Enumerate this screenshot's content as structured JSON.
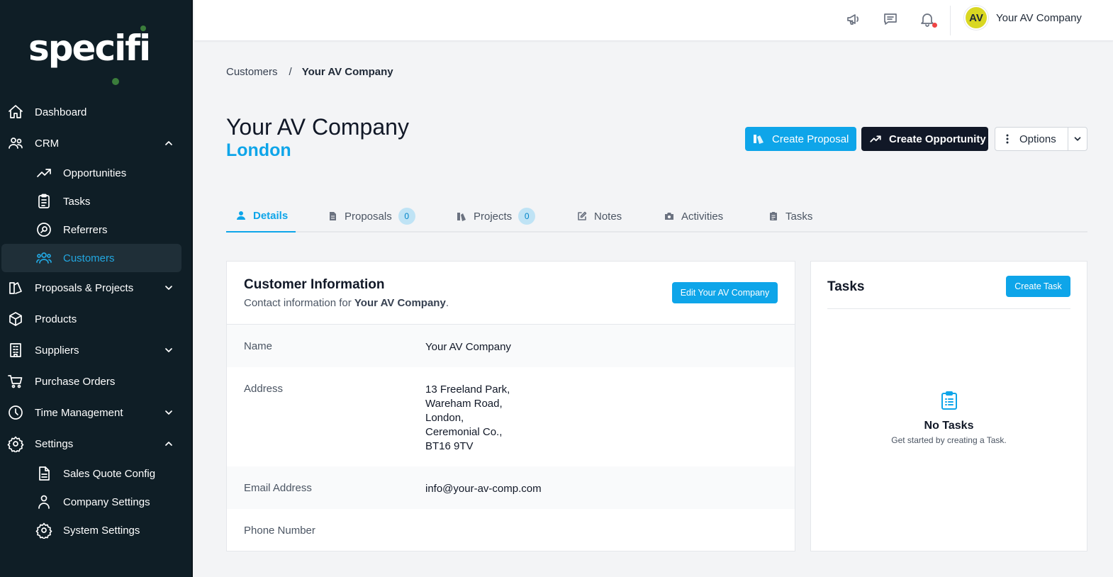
{
  "app": {
    "logo_text": "specifi"
  },
  "sidebar": {
    "items": [
      {
        "label": "Dashboard"
      },
      {
        "label": "CRM"
      },
      {
        "label": "Opportunities"
      },
      {
        "label": "Tasks"
      },
      {
        "label": "Referrers"
      },
      {
        "label": "Customers"
      },
      {
        "label": "Proposals & Projects"
      },
      {
        "label": "Products"
      },
      {
        "label": "Suppliers"
      },
      {
        "label": "Purchase Orders"
      },
      {
        "label": "Time Management"
      },
      {
        "label": "Settings"
      },
      {
        "label": "Sales Quote Config"
      },
      {
        "label": "Company Settings"
      },
      {
        "label": "System Settings"
      }
    ]
  },
  "topbar": {
    "avatar_initials": "AV",
    "user_name": "Your AV Company"
  },
  "breadcrumb": {
    "parent": "Customers",
    "separator": "/",
    "current": "Your AV Company"
  },
  "header": {
    "title": "Your AV Company",
    "subtitle": "London",
    "create_proposal": "Create Proposal",
    "create_opportunity": "Create Opportunity",
    "options": "Options"
  },
  "tabs": [
    {
      "label": "Details"
    },
    {
      "label": "Proposals",
      "count": "0"
    },
    {
      "label": "Projects",
      "count": "0"
    },
    {
      "label": "Notes"
    },
    {
      "label": "Activities"
    },
    {
      "label": "Tasks"
    }
  ],
  "customer_info": {
    "title": "Customer Information",
    "desc_prefix": "Contact information for ",
    "desc_name": "Your AV Company",
    "desc_suffix": ".",
    "edit_button": "Edit Your AV Company",
    "rows": [
      {
        "label": "Name",
        "value": "Your AV Company"
      },
      {
        "label": "Address",
        "lines": [
          "13 Freeland Park,",
          "Wareham Road,",
          "London,",
          "Ceremonial Co.,",
          "BT16 9TV"
        ]
      },
      {
        "label": "Email Address",
        "value": "info@your-av-comp.com"
      },
      {
        "label": "Phone Number",
        "value": ""
      }
    ]
  },
  "tasks_panel": {
    "title": "Tasks",
    "create_button": "Create Task",
    "empty_title": "No Tasks",
    "empty_desc": "Get started by creating a Task."
  },
  "colors": {
    "accent": "#0ea5e9",
    "sidebar_bg": "#0f1e26",
    "dark_button": "#111827",
    "avatar_bg": "#d9d722"
  }
}
